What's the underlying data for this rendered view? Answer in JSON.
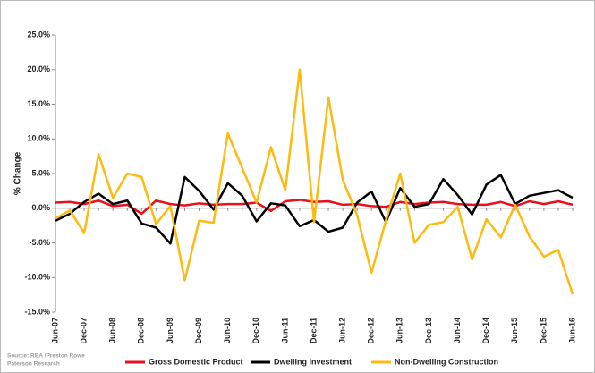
{
  "chart_data": {
    "type": "line",
    "y_label": "% Change",
    "source": [
      "Source: RBA /Preston Rowe",
      "Paterson Research"
    ],
    "categories": [
      "Jun-07",
      null,
      "Dec-07",
      null,
      "Jun-08",
      null,
      "Dec-08",
      null,
      "Jun-09",
      null,
      "Dec-09",
      null,
      "Jun-10",
      null,
      "Dec-10",
      null,
      "Jun-11",
      null,
      "Dec-11",
      null,
      "Jun-12",
      null,
      "Dec-12",
      null,
      "Jun-13",
      null,
      "Dec-13",
      null,
      "Jun-14",
      null,
      "Dec-14",
      null,
      "Jun-15",
      null,
      "Dec-15",
      null,
      "Jun-16"
    ],
    "series": [
      {
        "name": "Gross Domestic Product",
        "color": "#e8101e",
        "values": [
          0.8,
          0.9,
          0.6,
          1.1,
          0.3,
          0.5,
          -0.8,
          1.1,
          0.6,
          0.4,
          0.7,
          0.5,
          0.6,
          0.6,
          0.8,
          -0.4,
          1.0,
          1.2,
          0.9,
          1.0,
          0.5,
          0.6,
          0.3,
          0.2,
          0.9,
          0.6,
          0.8,
          0.9,
          0.6,
          0.5,
          0.5,
          0.9,
          0.3,
          1.0,
          0.6,
          1.0,
          0.5
        ]
      },
      {
        "name": "Dwelling Investment",
        "color": "#000000",
        "values": [
          -1.8,
          -0.8,
          0.9,
          2.1,
          0.6,
          1.1,
          -2.2,
          -2.8,
          -5.1,
          4.5,
          2.5,
          -0.2,
          3.6,
          1.8,
          -1.9,
          0.7,
          0.4,
          -2.6,
          -1.7,
          -3.4,
          -2.8,
          0.8,
          2.4,
          -2.0,
          2.9,
          0.2,
          0.6,
          4.2,
          1.9,
          -0.9,
          3.4,
          4.8,
          0.6,
          1.8,
          2.2,
          2.6,
          1.5
        ]
      },
      {
        "name": "Non-Dwelling Construction",
        "color": "#fbbb10",
        "values": [
          -1.5,
          -0.3,
          -3.6,
          7.8,
          1.5,
          5.0,
          4.5,
          -2.3,
          0.3,
          -10.4,
          -1.8,
          -2.1,
          10.8,
          5.8,
          0.8,
          8.8,
          2.6,
          20.0,
          -2.0,
          16.0,
          4.1,
          -1.0,
          -9.3,
          -1.8,
          5.0,
          -5.0,
          -2.4,
          -2.0,
          0.2,
          -7.4,
          -1.6,
          -4.2,
          0.5,
          -4.1,
          -7.0,
          -6.0,
          -12.4
        ]
      }
    ],
    "ylim": [
      -15,
      25
    ],
    "yticks": [
      {
        "value": -15,
        "label": "-15.0%"
      },
      {
        "value": -10,
        "label": "-10.0%"
      },
      {
        "value": -5,
        "label": "-5.0%"
      },
      {
        "value": 0,
        "label": "0.0%"
      },
      {
        "value": 5,
        "label": "5.0%"
      },
      {
        "value": 10,
        "label": "10.0%"
      },
      {
        "value": 15,
        "label": "15.0%"
      },
      {
        "value": 20,
        "label": "20.0%"
      },
      {
        "value": 25,
        "label": "25.0%"
      }
    ]
  }
}
